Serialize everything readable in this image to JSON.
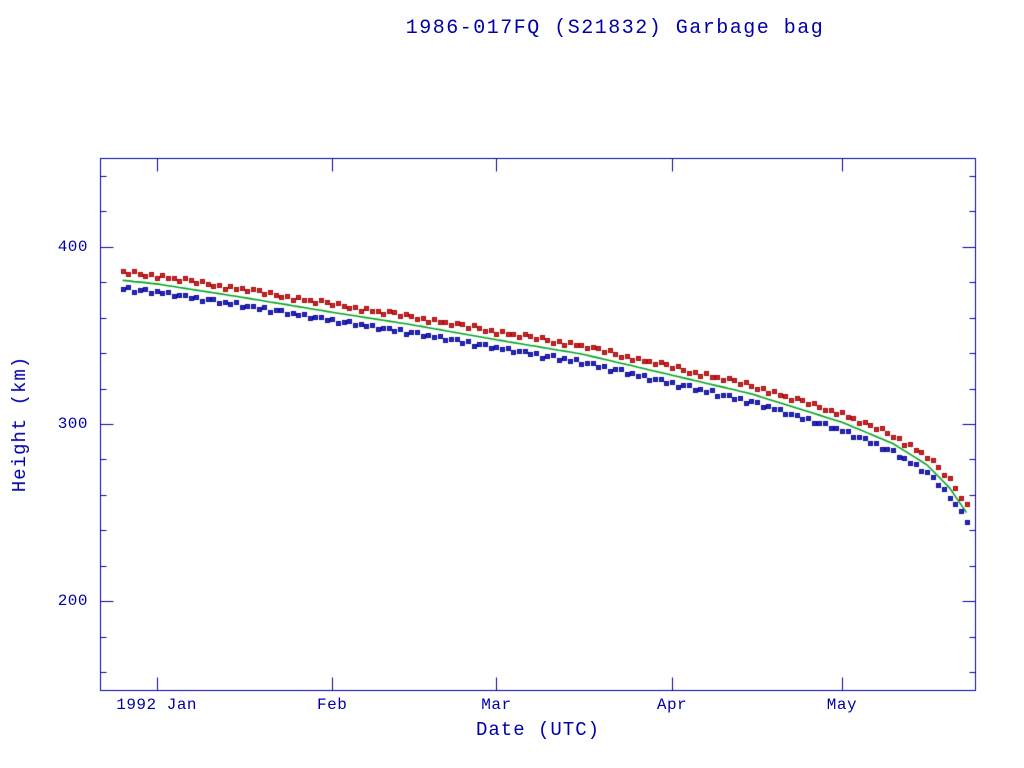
{
  "page": {
    "background": "#ffffff",
    "text_color": "#0000a8"
  },
  "chart_data": {
    "type": "scatter",
    "title": "1986-017FQ (S21832) Garbage bag",
    "xlabel": "Date (UTC)",
    "ylabel": "Height (km)",
    "axis_color": "#0000a8",
    "grid": false,
    "legend": "none",
    "x_unit": "days since 1992 Jan 1",
    "xlim": [
      -10,
      144.5
    ],
    "ylim": [
      150,
      450
    ],
    "yticks": [
      200,
      300,
      400
    ],
    "y_minor_step": 20,
    "xticks": [
      {
        "day": 0,
        "label": "1992 Jan"
      },
      {
        "day": 31,
        "label": "Feb"
      },
      {
        "day": 60,
        "label": "Mar"
      },
      {
        "day": 91,
        "label": "Apr"
      },
      {
        "day": 121,
        "label": "May"
      }
    ],
    "days_start": -6,
    "days_step": 1,
    "series": [
      {
        "name": "mean height (green fit line)",
        "type": "line",
        "color": "#00a41e",
        "values": [
          381.0,
          380.7,
          380.3,
          380.0,
          379.7,
          379.3,
          379.0,
          378.5,
          378.0,
          377.5,
          377.0,
          376.5,
          376.0,
          375.5,
          375.0,
          374.5,
          374.0,
          373.5,
          373.0,
          372.5,
          372.0,
          371.5,
          371.0,
          370.4,
          369.9,
          369.4,
          368.8,
          368.3,
          367.8,
          367.3,
          366.7,
          366.2,
          365.7,
          365.1,
          364.6,
          364.1,
          363.5,
          363.0,
          362.5,
          362.0,
          361.5,
          361.0,
          360.5,
          360.0,
          359.5,
          359.0,
          358.5,
          358.0,
          357.5,
          357.0,
          356.5,
          356.0,
          355.4,
          354.9,
          354.3,
          353.7,
          353.2,
          352.6,
          352.0,
          351.5,
          350.9,
          350.3,
          349.8,
          349.2,
          348.6,
          348.1,
          347.5,
          347.0,
          346.4,
          345.9,
          345.4,
          344.8,
          344.3,
          343.8,
          343.2,
          342.7,
          342.2,
          341.6,
          341.1,
          340.6,
          340.0,
          339.5,
          338.8,
          338.0,
          337.3,
          336.5,
          335.8,
          335.0,
          334.3,
          333.5,
          332.8,
          332.0,
          331.3,
          330.5,
          329.8,
          329.0,
          328.3,
          327.5,
          326.8,
          326.0,
          325.3,
          324.5,
          323.8,
          323.0,
          322.3,
          321.5,
          320.8,
          320.0,
          319.3,
          318.5,
          317.8,
          317.0,
          316.0,
          315.0,
          314.0,
          313.0,
          312.0,
          311.0,
          310.0,
          309.0,
          308.0,
          307.0,
          306.0,
          305.0,
          304.0,
          303.0,
          302.0,
          301.0,
          299.7,
          298.3,
          297.0,
          295.7,
          294.3,
          293.0,
          291.7,
          290.3,
          289.0,
          287.0,
          285.0,
          283.0,
          281.0,
          279.0,
          277.0,
          273.8,
          270.5,
          267.3,
          264.0,
          259.3,
          254.7,
          250.0
        ]
      },
      {
        "name": "apogee height (red squares)",
        "type": "scatter",
        "marker": "square",
        "color": "#d42222",
        "edge_color": "#a01212",
        "values": [
          386.4,
          384.8,
          386.1,
          384.7,
          383.4,
          384.4,
          382.4,
          384.0,
          382.3,
          382.5,
          380.8,
          382.2,
          381.4,
          379.6,
          380.8,
          379.2,
          377.7,
          378.6,
          376.4,
          378.0,
          376.3,
          376.5,
          374.8,
          376.1,
          375.3,
          373.5,
          374.6,
          373.0,
          371.5,
          372.4,
          370.1,
          371.7,
          370.0,
          370.1,
          368.4,
          369.8,
          368.9,
          367.1,
          368.3,
          366.7,
          365.2,
          366.1,
          363.9,
          365.5,
          363.8,
          364.0,
          362.3,
          363.7,
          362.9,
          361.1,
          362.3,
          360.7,
          359.1,
          360.0,
          357.7,
          359.2,
          357.5,
          357.6,
          355.8,
          357.2,
          356.3,
          354.4,
          355.6,
          353.9,
          352.3,
          353.2,
          350.9,
          352.5,
          350.7,
          350.9,
          349.2,
          350.5,
          349.7,
          347.9,
          349.0,
          347.4,
          345.9,
          346.7,
          344.5,
          346.1,
          344.3,
          344.5,
          342.6,
          343.7,
          342.7,
          340.6,
          341.6,
          339.7,
          338.0,
          338.6,
          336.2,
          337.5,
          335.6,
          335.5,
          333.6,
          334.7,
          333.7,
          331.6,
          332.6,
          330.7,
          329.0,
          329.6,
          327.2,
          328.5,
          326.6,
          326.5,
          324.6,
          325.7,
          324.7,
          322.6,
          323.6,
          321.7,
          319.7,
          320.1,
          317.4,
          318.5,
          316.3,
          316.0,
          313.8,
          314.7,
          313.4,
          311.1,
          311.8,
          309.7,
          307.7,
          308.1,
          305.4,
          306.5,
          304.0,
          303.3,
          300.8,
          301.4,
          299.7,
          297.1,
          297.5,
          295.0,
          292.7,
          292.1,
          288.4,
          288.5,
          285.3,
          284.0,
          280.8,
          279.5,
          275.9,
          271.4,
          269.8,
          264.0,
          258.4,
          255.1
        ]
      },
      {
        "name": "perigee height (blue squares)",
        "type": "scatter",
        "marker": "square",
        "color": "#2626cc",
        "edge_color": "#121290",
        "values": [
          375.9,
          377.0,
          374.6,
          375.8,
          376.2,
          373.9,
          374.9,
          373.7,
          374.6,
          372.0,
          372.7,
          372.7,
          370.9,
          371.8,
          369.3,
          370.3,
          370.5,
          368.1,
          368.9,
          367.7,
          368.6,
          366.0,
          366.7,
          366.6,
          364.8,
          365.7,
          363.1,
          364.1,
          364.3,
          361.9,
          362.6,
          361.4,
          362.3,
          359.6,
          360.3,
          360.3,
          358.4,
          359.3,
          356.8,
          357.8,
          358.0,
          355.6,
          356.4,
          355.2,
          356.1,
          353.5,
          354.2,
          354.2,
          352.4,
          353.3,
          350.8,
          351.8,
          351.9,
          349.5,
          350.2,
          348.9,
          349.8,
          347.1,
          347.7,
          347.7,
          345.8,
          346.6,
          344.1,
          345.0,
          345.1,
          342.7,
          343.4,
          342.2,
          343.0,
          340.4,
          341.1,
          341.0,
          339.2,
          340.1,
          337.5,
          338.5,
          338.7,
          336.2,
          337.0,
          335.8,
          336.6,
          334.0,
          334.5,
          334.2,
          332.2,
          332.8,
          330.1,
          330.8,
          330.8,
          328.1,
          328.7,
          327.2,
          327.9,
          325.0,
          325.5,
          325.2,
          323.2,
          323.8,
          321.1,
          321.8,
          321.8,
          319.1,
          319.7,
          318.2,
          318.9,
          316.0,
          316.5,
          316.2,
          314.2,
          314.8,
          312.1,
          312.8,
          312.5,
          309.6,
          309.9,
          308.2,
          308.6,
          305.5,
          305.7,
          305.2,
          302.9,
          303.3,
          300.3,
          300.8,
          300.5,
          297.6,
          297.9,
          296.2,
          296.3,
          292.8,
          292.7,
          291.9,
          289.2,
          289.3,
          286.0,
          286.1,
          285.5,
          281.6,
          280.9,
          278.2,
          277.6,
          273.5,
          272.7,
          270.0,
          265.4,
          263.6,
          258.3,
          255.1,
          251.2,
          244.6
        ]
      }
    ]
  }
}
